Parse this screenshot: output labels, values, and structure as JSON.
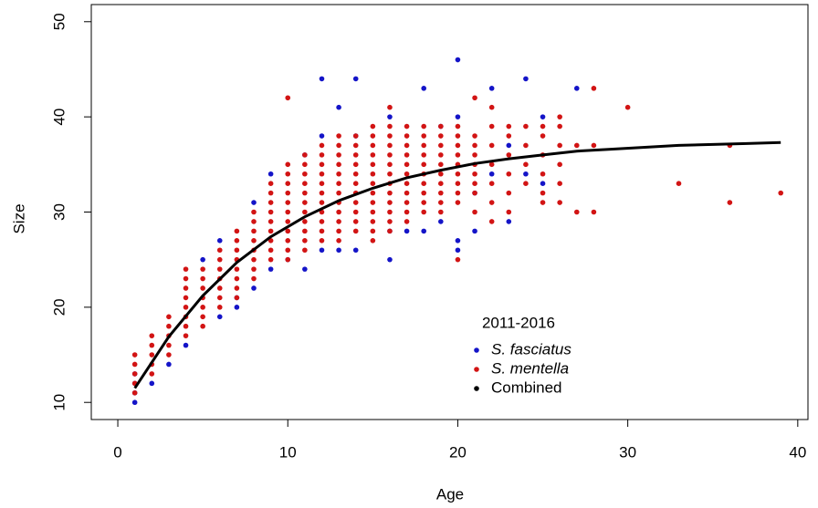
{
  "chart_data": {
    "type": "scatter",
    "x_label": "Age",
    "y_label": "Size",
    "xlim": [
      -1.56,
      40.6
    ],
    "ylim": [
      8.2,
      51.8
    ],
    "xticks": [
      0,
      10,
      20,
      30,
      40
    ],
    "yticks": [
      10,
      20,
      30,
      40,
      50
    ],
    "grid": false,
    "legend": {
      "title": "2011-2016",
      "position": "bottom-right"
    },
    "series": [
      {
        "name": "S. fasciatus",
        "color": "#1414c8",
        "mode": "markers",
        "font_style": "italic",
        "x": [
          1,
          1,
          1,
          1,
          2,
          3,
          4,
          5,
          6,
          6,
          7,
          7,
          8,
          8,
          9,
          9,
          10,
          11,
          11,
          12,
          12,
          12,
          13,
          13,
          14,
          14,
          14,
          16,
          16,
          16,
          17,
          18,
          18,
          19,
          19,
          20,
          20,
          20,
          20,
          21,
          21,
          22,
          22,
          23,
          23,
          24,
          24,
          25,
          25,
          27
        ],
        "values": [
          10,
          11,
          12,
          13,
          12,
          14,
          16,
          25,
          19,
          27,
          20,
          21,
          22,
          31,
          24,
          34,
          25,
          24,
          36,
          26,
          38,
          44,
          26,
          41,
          26,
          44,
          38,
          25,
          28,
          40,
          28,
          28,
          43,
          29,
          39,
          26,
          27,
          46,
          40,
          28,
          32,
          43,
          34,
          29,
          37,
          44,
          34,
          33,
          40,
          43
        ]
      },
      {
        "name": "S. mentella",
        "color": "#d21414",
        "mode": "markers",
        "font_style": "italic",
        "x": [
          1,
          1,
          1,
          1,
          1,
          2,
          2,
          2,
          2,
          2,
          3,
          3,
          3,
          3,
          3,
          4,
          4,
          4,
          4,
          4,
          4,
          4,
          4,
          5,
          5,
          5,
          5,
          5,
          5,
          5,
          6,
          6,
          6,
          6,
          6,
          6,
          6,
          7,
          7,
          7,
          7,
          7,
          7,
          7,
          7,
          8,
          8,
          8,
          8,
          8,
          8,
          8,
          8,
          9,
          9,
          9,
          9,
          9,
          9,
          9,
          9,
          9,
          10,
          10,
          10,
          10,
          10,
          10,
          10,
          10,
          10,
          10,
          10,
          10,
          11,
          11,
          11,
          11,
          11,
          11,
          11,
          11,
          11,
          11,
          11,
          12,
          12,
          12,
          12,
          12,
          12,
          12,
          12,
          12,
          12,
          12,
          13,
          13,
          13,
          13,
          13,
          13,
          13,
          13,
          13,
          13,
          13,
          13,
          14,
          14,
          14,
          14,
          14,
          14,
          14,
          14,
          14,
          14,
          14,
          15,
          15,
          15,
          15,
          15,
          15,
          15,
          15,
          15,
          15,
          15,
          15,
          15,
          16,
          16,
          16,
          16,
          16,
          16,
          16,
          16,
          16,
          16,
          16,
          16,
          16,
          17,
          17,
          17,
          17,
          17,
          17,
          17,
          17,
          17,
          17,
          17,
          18,
          18,
          18,
          18,
          18,
          18,
          18,
          18,
          18,
          18,
          19,
          19,
          19,
          19,
          19,
          19,
          19,
          19,
          19,
          19,
          20,
          20,
          20,
          20,
          20,
          20,
          20,
          20,
          20,
          20,
          21,
          21,
          21,
          21,
          21,
          21,
          21,
          21,
          21,
          22,
          22,
          22,
          22,
          22,
          22,
          22,
          23,
          23,
          23,
          23,
          23,
          23,
          24,
          24,
          24,
          24,
          25,
          25,
          25,
          25,
          25,
          25,
          26,
          26,
          26,
          26,
          26,
          26,
          27,
          27,
          28,
          28,
          28,
          30,
          33,
          36,
          36,
          39
        ],
        "values": [
          11,
          12,
          13,
          14,
          15,
          13,
          14,
          15,
          16,
          17,
          15,
          16,
          17,
          18,
          19,
          17,
          18,
          19,
          20,
          21,
          22,
          23,
          24,
          18,
          19,
          20,
          21,
          22,
          23,
          24,
          20,
          21,
          22,
          23,
          24,
          25,
          26,
          21,
          22,
          23,
          24,
          25,
          26,
          27,
          28,
          23,
          24,
          25,
          26,
          27,
          28,
          29,
          30,
          25,
          26,
          27,
          28,
          29,
          30,
          31,
          32,
          33,
          25,
          26,
          27,
          28,
          29,
          30,
          31,
          32,
          33,
          34,
          35,
          42,
          26,
          27,
          28,
          29,
          30,
          31,
          32,
          33,
          34,
          35,
          36,
          27,
          28,
          29,
          30,
          31,
          32,
          33,
          34,
          35,
          36,
          37,
          27,
          28,
          29,
          30,
          31,
          32,
          33,
          34,
          35,
          36,
          37,
          38,
          28,
          29,
          30,
          31,
          32,
          33,
          34,
          35,
          36,
          37,
          38,
          27,
          28,
          29,
          30,
          31,
          32,
          33,
          34,
          35,
          36,
          37,
          38,
          39,
          28,
          29,
          30,
          31,
          32,
          33,
          34,
          35,
          36,
          37,
          38,
          39,
          41,
          29,
          30,
          31,
          32,
          33,
          34,
          35,
          36,
          37,
          38,
          39,
          30,
          31,
          32,
          33,
          34,
          35,
          36,
          37,
          38,
          39,
          30,
          31,
          32,
          33,
          34,
          35,
          36,
          37,
          38,
          39,
          25,
          31,
          32,
          33,
          34,
          35,
          36,
          37,
          38,
          39,
          30,
          32,
          33,
          34,
          35,
          36,
          37,
          38,
          42,
          29,
          31,
          33,
          35,
          37,
          39,
          41,
          30,
          32,
          34,
          36,
          38,
          39,
          33,
          35,
          37,
          39,
          31,
          32,
          34,
          36,
          38,
          39,
          31,
          33,
          35,
          37,
          39,
          40,
          30,
          37,
          30,
          37,
          43,
          41,
          33,
          31,
          37,
          32
        ]
      },
      {
        "name": "Combined",
        "color": "#000000",
        "mode": "line",
        "font_style": "normal",
        "x": [
          1,
          3,
          5,
          7,
          9,
          11,
          13,
          15,
          17,
          19,
          21,
          23,
          25,
          27,
          29,
          31,
          33,
          35,
          37,
          39
        ],
        "values": [
          11.5,
          16.9,
          21.2,
          24.7,
          27.4,
          29.5,
          31.2,
          32.5,
          33.6,
          34.4,
          35.1,
          35.6,
          36.0,
          36.4,
          36.6,
          36.8,
          37.0,
          37.1,
          37.2,
          37.3
        ]
      }
    ]
  }
}
